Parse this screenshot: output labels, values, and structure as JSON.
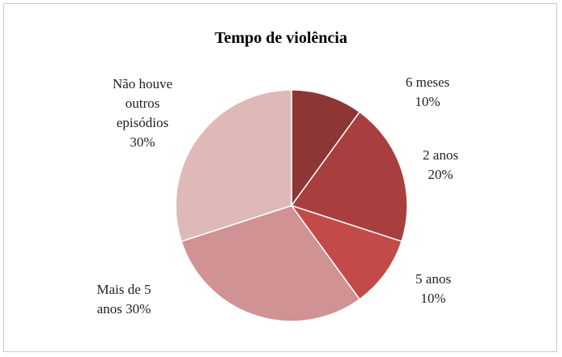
{
  "chart_data": {
    "type": "pie",
    "title": "Tempo de violência",
    "categories": [
      "6 meses",
      "2 anos",
      "5 anos",
      "Mais de 5 anos",
      "Não houve outros episódios"
    ],
    "values": [
      10,
      20,
      10,
      30,
      30
    ],
    "value_labels": [
      "10%",
      "20%",
      "10%",
      "30%",
      "30%"
    ],
    "colors": [
      "#8c3636",
      "#a93e3e",
      "#c24b49",
      "#d09292",
      "#dfb9b7"
    ]
  }
}
